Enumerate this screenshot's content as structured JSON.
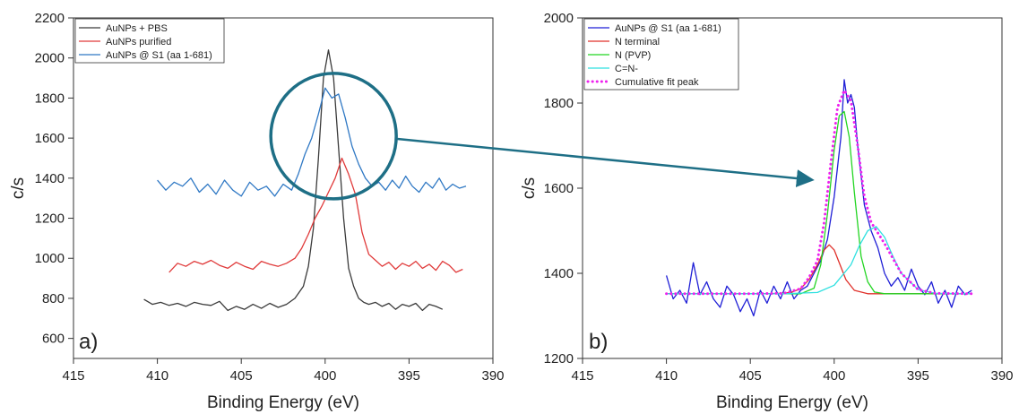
{
  "chart_data": [
    {
      "type": "line",
      "panel_label": "a)",
      "xlabel": "Binding Energy (eV)",
      "ylabel": "c/s",
      "xlim": [
        415,
        390
      ],
      "ylim": [
        500,
        2200
      ],
      "x_reversed": true,
      "xticks": [
        "415",
        "410",
        "405",
        "400",
        "395",
        "390"
      ],
      "yticks": [
        "600",
        "800",
        "1000",
        "1200",
        "1400",
        "1600",
        "1800",
        "2000",
        "2200"
      ],
      "legend_position": "top-left",
      "grid": false,
      "annotation": "circle around the peak region with an arrow pointing to panel b",
      "series": [
        {
          "name": "AuNPs + PBS",
          "color": "#3a3a3a",
          "x": [
            410.8,
            410.3,
            409.8,
            409.3,
            408.8,
            408.3,
            407.8,
            407.3,
            406.8,
            406.3,
            405.8,
            405.3,
            404.8,
            404.3,
            403.8,
            403.3,
            402.8,
            402.3,
            401.8,
            401.3,
            401.0,
            400.7,
            400.4,
            400.1,
            399.8,
            399.5,
            399.2,
            398.9,
            398.6,
            398.3,
            398.0,
            397.7,
            397.4,
            397.0,
            396.6,
            396.2,
            395.8,
            395.4,
            395.0,
            394.6,
            394.2,
            393.8,
            393.4,
            393.0
          ],
          "y": [
            795,
            770,
            780,
            765,
            775,
            760,
            780,
            770,
            765,
            785,
            740,
            760,
            745,
            770,
            750,
            775,
            755,
            770,
            800,
            860,
            960,
            1150,
            1500,
            1900,
            2040,
            1900,
            1550,
            1200,
            950,
            860,
            800,
            780,
            770,
            780,
            760,
            775,
            745,
            770,
            760,
            775,
            740,
            770,
            760,
            745
          ]
        },
        {
          "name": "AuNPs purified",
          "color": "#e03a3a",
          "x": [
            409.3,
            408.8,
            408.3,
            407.8,
            407.3,
            406.8,
            406.3,
            405.8,
            405.3,
            404.8,
            404.3,
            403.8,
            403.3,
            402.8,
            402.3,
            401.8,
            401.4,
            401.0,
            400.6,
            400.2,
            399.8,
            399.4,
            399.0,
            398.6,
            398.2,
            397.8,
            397.4,
            397.0,
            396.6,
            396.2,
            395.8,
            395.4,
            395.0,
            394.6,
            394.2,
            393.8,
            393.4,
            393.0,
            392.6,
            392.2,
            391.8
          ],
          "y": [
            930,
            975,
            960,
            985,
            970,
            990,
            965,
            950,
            980,
            960,
            945,
            985,
            970,
            960,
            975,
            1000,
            1050,
            1120,
            1200,
            1260,
            1330,
            1400,
            1500,
            1420,
            1320,
            1130,
            1020,
            990,
            960,
            980,
            945,
            975,
            960,
            985,
            950,
            970,
            940,
            985,
            965,
            930,
            945
          ]
        },
        {
          "name": "AuNPs @ S1 (aa 1-681)",
          "color": "#2f78c4",
          "x": [
            410.0,
            409.5,
            409.0,
            408.5,
            408.0,
            407.5,
            407.0,
            406.5,
            406.0,
            405.5,
            405.0,
            404.5,
            404.0,
            403.5,
            403.0,
            402.5,
            402.0,
            401.6,
            401.2,
            400.8,
            400.4,
            400.0,
            399.6,
            399.2,
            398.8,
            398.4,
            398.0,
            397.6,
            397.2,
            396.8,
            396.4,
            396.0,
            395.6,
            395.2,
            394.8,
            394.4,
            394.0,
            393.6,
            393.2,
            392.8,
            392.4,
            392.0,
            391.6
          ],
          "y": [
            1390,
            1340,
            1380,
            1360,
            1400,
            1330,
            1370,
            1320,
            1390,
            1340,
            1310,
            1380,
            1340,
            1360,
            1310,
            1370,
            1340,
            1420,
            1520,
            1600,
            1720,
            1850,
            1800,
            1820,
            1700,
            1560,
            1470,
            1400,
            1360,
            1380,
            1340,
            1390,
            1350,
            1410,
            1360,
            1330,
            1380,
            1350,
            1400,
            1340,
            1370,
            1350,
            1360
          ]
        }
      ]
    },
    {
      "type": "line",
      "panel_label": "b)",
      "xlabel": "Binding Energy (eV)",
      "ylabel": "c/s",
      "xlim": [
        415,
        390
      ],
      "ylim": [
        1200,
        2000
      ],
      "x_reversed": true,
      "xticks": [
        "415",
        "410",
        "405",
        "400",
        "395",
        "390"
      ],
      "yticks": [
        "1200",
        "1400",
        "1600",
        "1800",
        "2000"
      ],
      "legend_position": "top-left",
      "grid": false,
      "series": [
        {
          "name": "AuNPs @ S1 (aa 1-681)",
          "color": "#1f1fd6",
          "style": "solid",
          "x": [
            410.0,
            409.6,
            409.2,
            408.8,
            408.4,
            408.0,
            407.6,
            407.2,
            406.8,
            406.4,
            406.0,
            405.6,
            405.2,
            404.8,
            404.4,
            404.0,
            403.6,
            403.2,
            402.8,
            402.4,
            402.0,
            401.6,
            401.2,
            400.8,
            400.4,
            400.0,
            399.6,
            399.4,
            399.2,
            399.0,
            398.8,
            398.6,
            398.2,
            397.8,
            397.4,
            397.0,
            396.6,
            396.2,
            395.8,
            395.4,
            395.0,
            394.6,
            394.2,
            393.8,
            393.4,
            393.0,
            392.6,
            392.2,
            391.8
          ],
          "y": [
            1395,
            1340,
            1360,
            1330,
            1425,
            1350,
            1380,
            1340,
            1320,
            1370,
            1350,
            1310,
            1340,
            1300,
            1360,
            1330,
            1370,
            1340,
            1380,
            1340,
            1360,
            1370,
            1400,
            1430,
            1480,
            1580,
            1720,
            1855,
            1800,
            1820,
            1790,
            1700,
            1560,
            1500,
            1460,
            1400,
            1370,
            1390,
            1360,
            1410,
            1370,
            1350,
            1380,
            1330,
            1360,
            1320,
            1370,
            1350,
            1360
          ]
        },
        {
          "name": "N terminal",
          "color": "#e0302a",
          "style": "solid",
          "x": [
            410.0,
            408.0,
            406.0,
            404.0,
            403.0,
            402.5,
            402.0,
            401.5,
            401.0,
            400.6,
            400.3,
            400.0,
            399.7,
            399.3,
            398.8,
            398.0,
            397.0,
            395.0,
            393.0,
            391.8
          ],
          "y": [
            1352,
            1352,
            1352,
            1352,
            1353,
            1356,
            1364,
            1385,
            1420,
            1455,
            1467,
            1455,
            1425,
            1385,
            1360,
            1352,
            1352,
            1352,
            1352,
            1352
          ]
        },
        {
          "name": "N (PVP)",
          "color": "#22d522",
          "style": "solid",
          "x": [
            410.0,
            405.0,
            402.0,
            401.2,
            400.8,
            400.4,
            400.0,
            399.7,
            399.4,
            399.1,
            398.8,
            398.4,
            398.0,
            397.6,
            397.0,
            395.0,
            391.8
          ],
          "y": [
            1352,
            1352,
            1352,
            1365,
            1420,
            1540,
            1690,
            1770,
            1780,
            1720,
            1590,
            1440,
            1380,
            1356,
            1352,
            1352,
            1352
          ]
        },
        {
          "name": "C=N-",
          "color": "#2ee0e0",
          "style": "solid",
          "x": [
            410.0,
            403.0,
            401.0,
            400.0,
            399.0,
            398.5,
            398.0,
            397.5,
            397.0,
            396.5,
            396.0,
            395.0,
            394.0,
            391.8
          ],
          "y": [
            1352,
            1352,
            1355,
            1372,
            1420,
            1465,
            1500,
            1510,
            1485,
            1440,
            1400,
            1362,
            1353,
            1352
          ]
        },
        {
          "name": "Cumulative fit peak",
          "color": "#ee22ee",
          "style": "dotted",
          "x": [
            410.0,
            405.0,
            403.0,
            402.0,
            401.5,
            401.0,
            400.6,
            400.2,
            399.8,
            399.4,
            399.0,
            398.6,
            398.2,
            397.8,
            397.4,
            397.0,
            396.5,
            396.0,
            395.0,
            394.0,
            391.8
          ],
          "y": [
            1352,
            1352,
            1353,
            1364,
            1390,
            1430,
            1520,
            1660,
            1790,
            1830,
            1805,
            1700,
            1580,
            1520,
            1495,
            1470,
            1435,
            1400,
            1362,
            1353,
            1352
          ]
        }
      ]
    }
  ]
}
